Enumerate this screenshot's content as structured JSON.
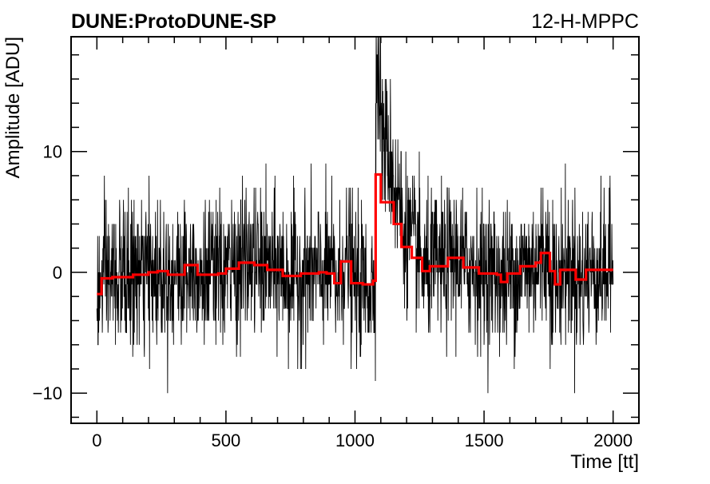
{
  "header": {
    "experiment": "DUNE:ProtoDUNE-SP",
    "channel": "12-H-MPPC"
  },
  "chart_data": {
    "type": "line",
    "xlabel": "Time [tt]",
    "ylabel": "Amplitude [ADU]",
    "xlim": [
      -100,
      2100
    ],
    "ylim": [
      -12.5,
      19.5
    ],
    "x_ticks": [
      0,
      500,
      1000,
      1500,
      2000
    ],
    "x_tick_labels": [
      "0",
      "500",
      "1000",
      "1500",
      "2000"
    ],
    "y_ticks": [
      -10,
      0,
      10
    ],
    "y_tick_labels": [
      "−10",
      "0",
      "10"
    ],
    "grid": false,
    "series": [
      {
        "role": "raw-waveform",
        "color": "#000000",
        "x_start": 0,
        "x_end": 2000,
        "noise_std": 3.0,
        "pulse_peak_x": 1090,
        "pulse_peak_y": 18
      },
      {
        "role": "smoothed-baseline",
        "color": "#ff0000",
        "step": [
          [
            0,
            -1.8
          ],
          [
            18,
            -0.5
          ],
          [
            60,
            -0.4
          ],
          [
            100,
            -0.4
          ],
          [
            140,
            -0.2
          ],
          [
            200,
            0.0
          ],
          [
            235,
            0.1
          ],
          [
            275,
            -0.2
          ],
          [
            340,
            0.6
          ],
          [
            390,
            -0.2
          ],
          [
            470,
            -0.1
          ],
          [
            500,
            0.3
          ],
          [
            550,
            0.8
          ],
          [
            610,
            0.6
          ],
          [
            660,
            0.2
          ],
          [
            720,
            -0.3
          ],
          [
            790,
            -0.1
          ],
          [
            860,
            0.0
          ],
          [
            890,
            -0.1
          ],
          [
            920,
            -0.9
          ],
          [
            945,
            0.9
          ],
          [
            985,
            -0.9
          ],
          [
            1030,
            -1.0
          ],
          [
            1070,
            -0.7
          ],
          [
            1080,
            8.1
          ],
          [
            1100,
            5.8
          ],
          [
            1150,
            4.0
          ],
          [
            1180,
            2.1
          ],
          [
            1220,
            1.2
          ],
          [
            1260,
            0.1
          ],
          [
            1290,
            0.5
          ],
          [
            1360,
            1.2
          ],
          [
            1420,
            0.4
          ],
          [
            1480,
            -0.1
          ],
          [
            1550,
            -0.2
          ],
          [
            1565,
            -0.8
          ],
          [
            1590,
            -0.1
          ],
          [
            1640,
            0.5
          ],
          [
            1700,
            0.8
          ],
          [
            1720,
            1.6
          ],
          [
            1755,
            0.1
          ],
          [
            1775,
            -1.0
          ],
          [
            1795,
            0.2
          ],
          [
            1840,
            0.2
          ],
          [
            1855,
            -0.6
          ],
          [
            1895,
            0.2
          ],
          [
            2000,
            0.2
          ]
        ]
      }
    ]
  }
}
